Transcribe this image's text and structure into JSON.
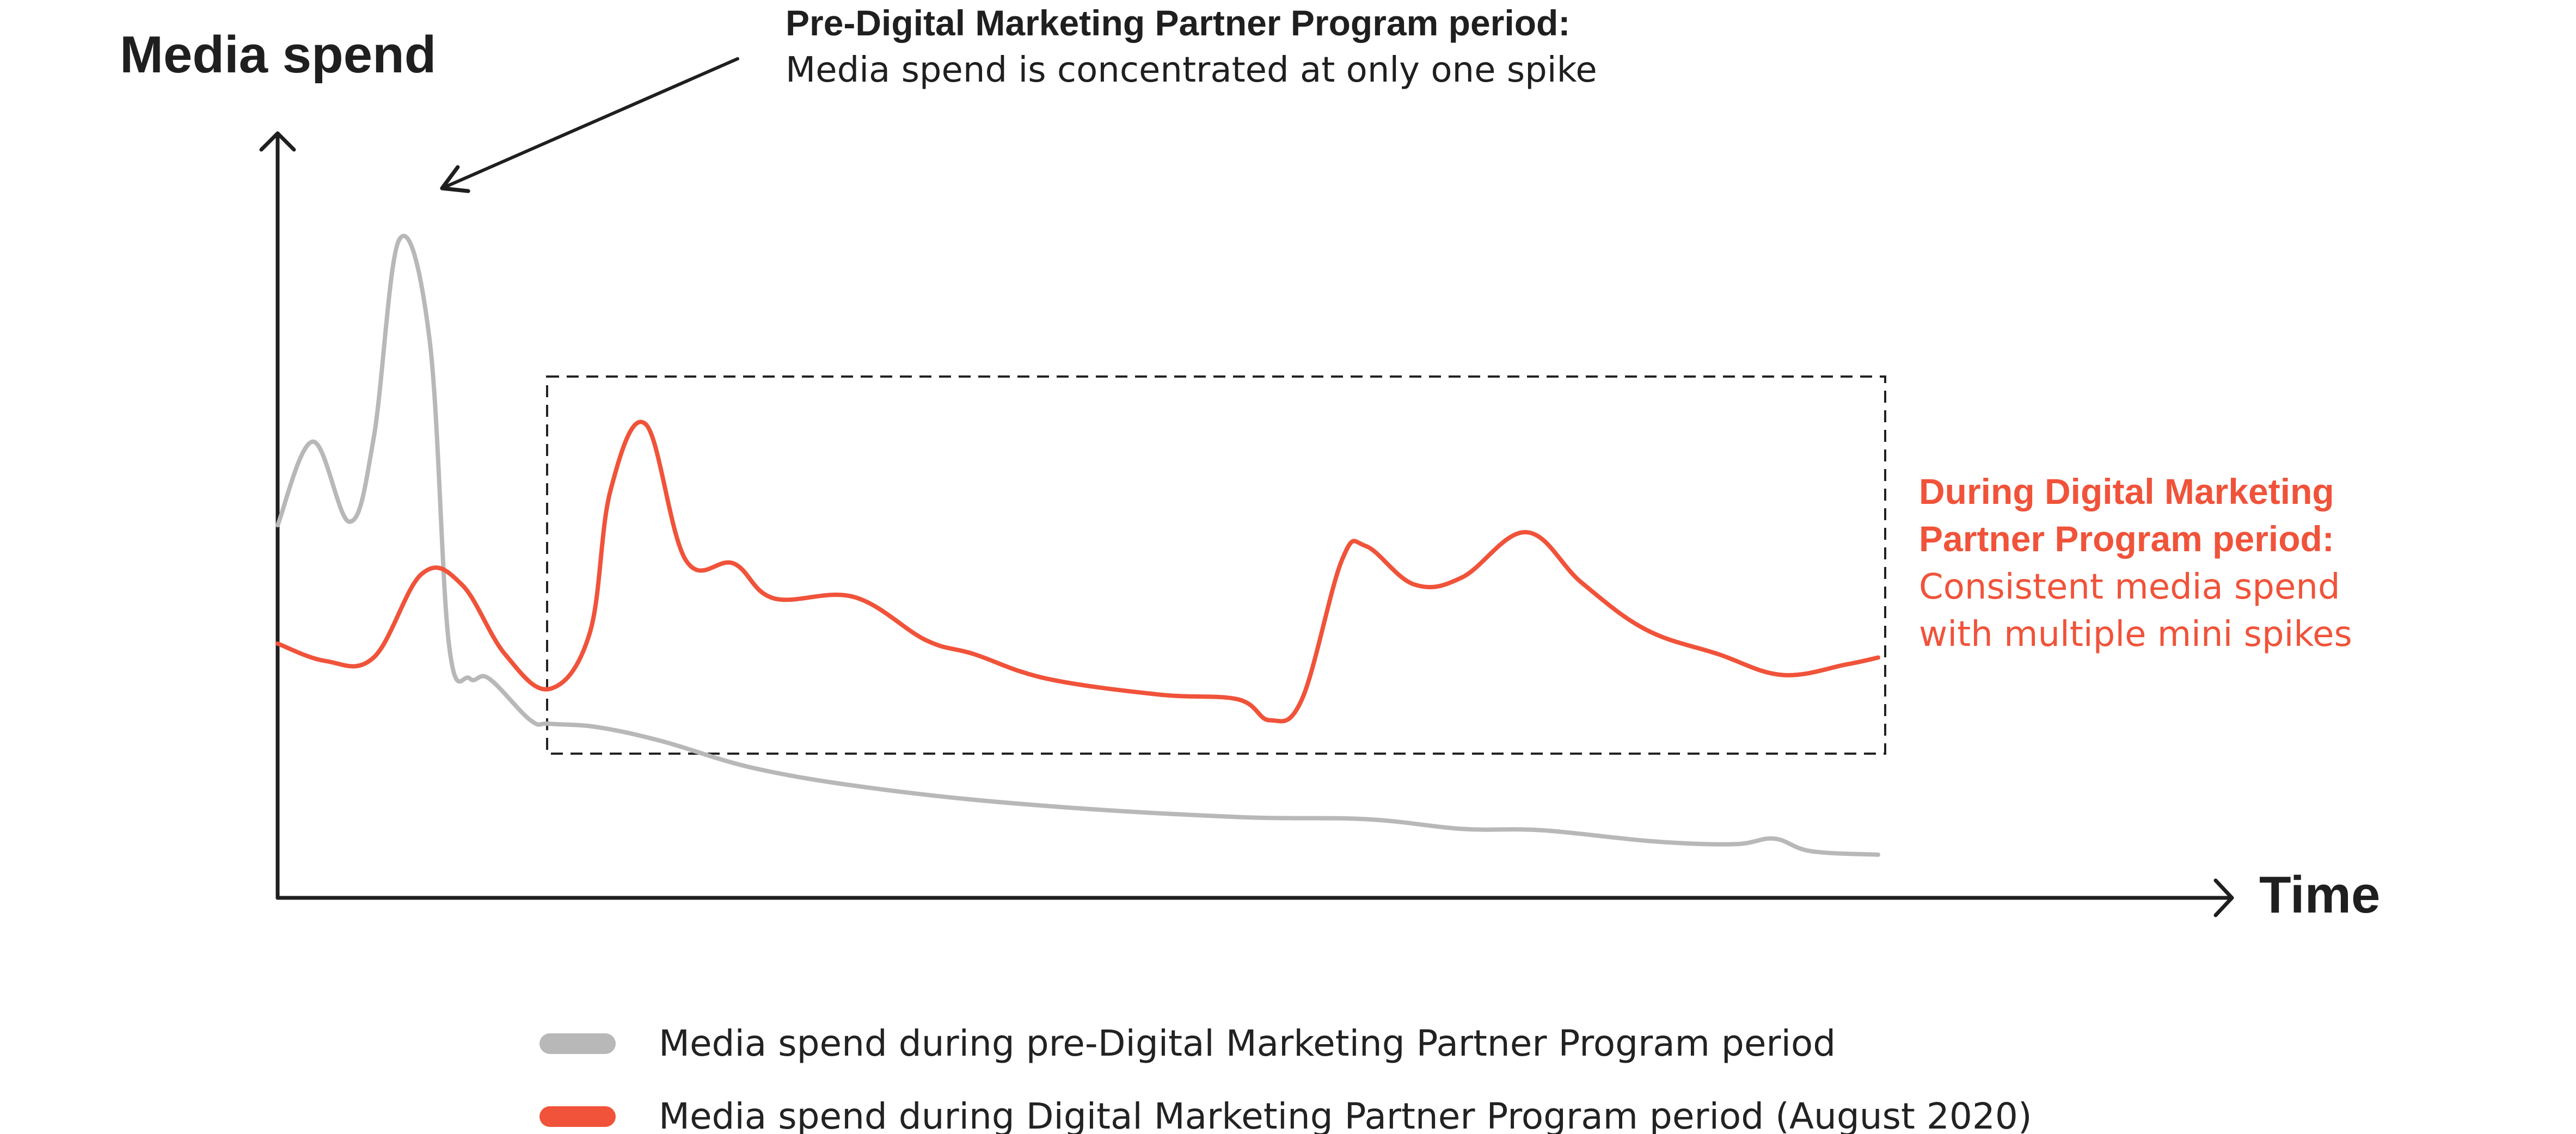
{
  "chart_data": {
    "type": "line",
    "ylabel": "Media spend",
    "xlabel": "Time",
    "colors": {
      "pre": "#b8b8b8",
      "during": "#f0533a",
      "axis": "#1f1f1f",
      "text": "#1f1f1f"
    },
    "series": [
      {
        "name": "Media spend during pre-Digital Marketing Partner Program period",
        "color": "#b8b8b8",
        "points": [
          [
            0.0,
            53.5
          ],
          [
            2.2,
            65.5
          ],
          [
            4.5,
            54
          ],
          [
            6.0,
            66
          ],
          [
            7.6,
            94.5
          ],
          [
            9.5,
            80
          ],
          [
            10.7,
            36.5
          ],
          [
            12.0,
            31.5
          ],
          [
            13.2,
            31.5
          ],
          [
            15.8,
            25.5
          ],
          [
            17.0,
            25
          ],
          [
            20.0,
            24.5
          ],
          [
            24.0,
            22.5
          ],
          [
            30.0,
            18.5
          ],
          [
            38.0,
            15.5
          ],
          [
            48.0,
            13.2
          ],
          [
            60.0,
            11.6
          ],
          [
            68.0,
            11.3
          ],
          [
            74.0,
            9.9
          ],
          [
            79.0,
            9.7
          ],
          [
            86.0,
            8.1
          ],
          [
            91.0,
            7.7
          ],
          [
            93.5,
            8.5
          ],
          [
            95.8,
            6.7
          ],
          [
            100.0,
            6.2
          ]
        ]
      },
      {
        "name": "Media spend during Digital Marketing Partner Program period (August 2020)",
        "color": "#f0533a",
        "points": [
          [
            0.0,
            36.5
          ],
          [
            3.0,
            34
          ],
          [
            6.0,
            34.5
          ],
          [
            9.0,
            46.5
          ],
          [
            11.5,
            45
          ],
          [
            14.2,
            35
          ],
          [
            17.0,
            30
          ],
          [
            19.5,
            38
          ],
          [
            20.8,
            58.5
          ],
          [
            23.0,
            68
          ],
          [
            25.5,
            48.5
          ],
          [
            28.5,
            48
          ],
          [
            31.0,
            43
          ],
          [
            36.0,
            43.2
          ],
          [
            40.5,
            37
          ],
          [
            43.5,
            35
          ],
          [
            48.0,
            31.5
          ],
          [
            55.0,
            29.2
          ],
          [
            60.0,
            28.5
          ],
          [
            62.0,
            25.5
          ],
          [
            64.0,
            28.5
          ],
          [
            66.5,
            48.5
          ],
          [
            68.0,
            50.5
          ],
          [
            71.0,
            45
          ],
          [
            74.0,
            46
          ],
          [
            78.0,
            52.5
          ],
          [
            81.5,
            45.2
          ],
          [
            85.5,
            38.5
          ],
          [
            90.0,
            35
          ],
          [
            94.0,
            32
          ],
          [
            98.0,
            33.5
          ],
          [
            100.0,
            34.5
          ]
        ]
      }
    ],
    "annotations": [
      {
        "target": "pre-peak",
        "title": "Pre-Digital Marketing Partner Program period:",
        "text": "Media spend is concentrated at only one spike"
      },
      {
        "target": "during-box",
        "title_lines": [
          "During Digital Marketing",
          "Partner Program period:"
        ],
        "text_lines": [
          "Consistent media spend",
          "with multiple mini spikes"
        ]
      }
    ],
    "legend": [
      {
        "label": "Media spend during pre-Digital Marketing Partner Program period",
        "color": "#b8b8b8"
      },
      {
        "label": "Media spend during Digital Marketing Partner Program period (August 2020)",
        "color": "#f0533a"
      }
    ]
  }
}
